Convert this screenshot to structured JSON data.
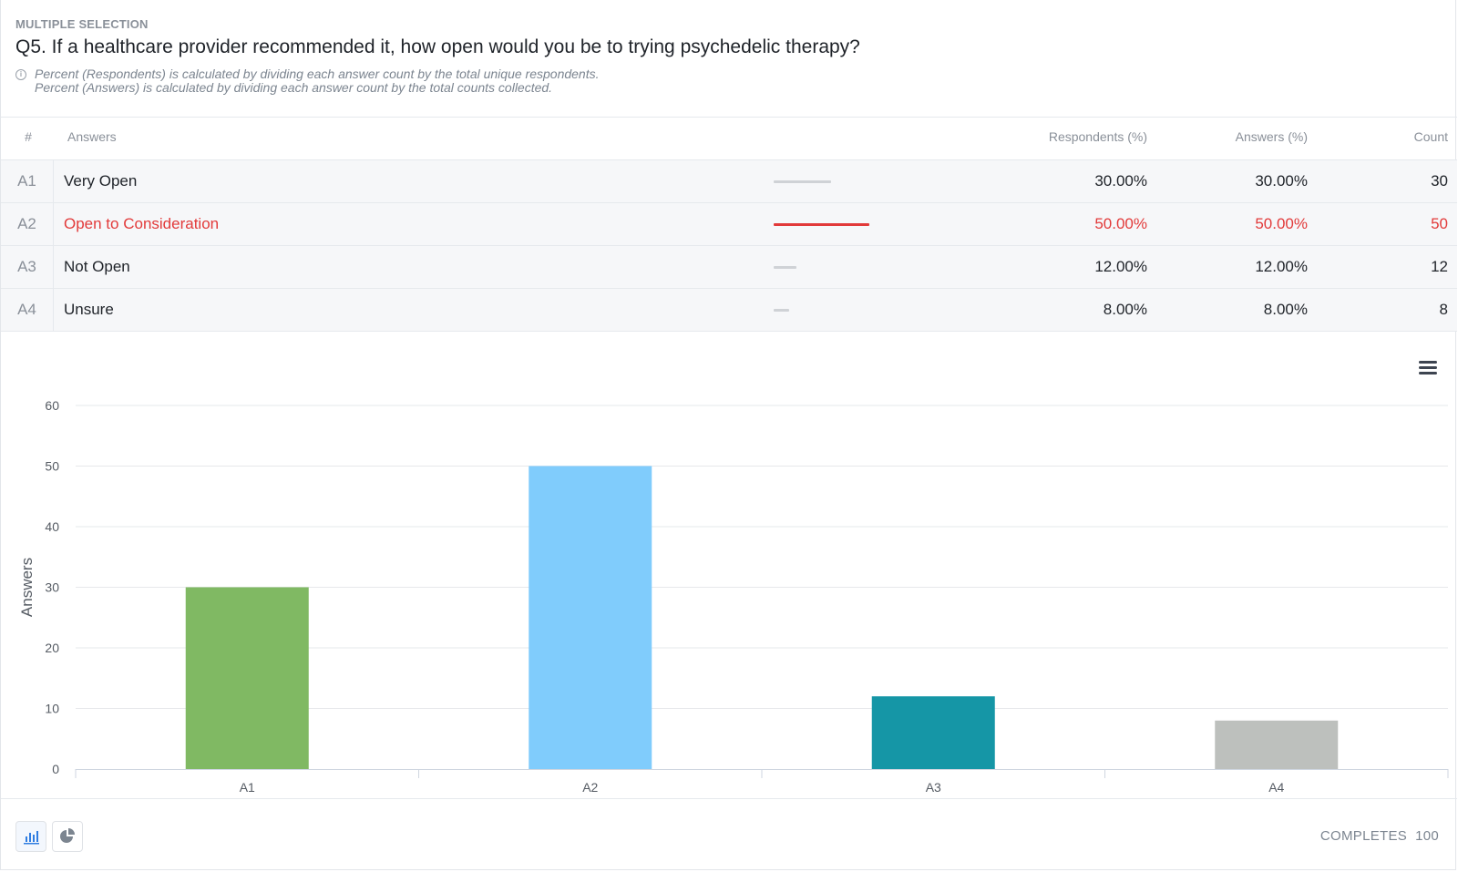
{
  "question": {
    "type": "MULTIPLE SELECTION",
    "title": "Q5. If a healthcare provider recommended it, how open would you be to trying psychedelic therapy?",
    "note_respondents": "Percent (Respondents) is calculated by dividing each answer count by the total unique respondents.",
    "note_answers": "Percent (Answers) is calculated by dividing each answer count by the total counts collected."
  },
  "table": {
    "headers": {
      "index": "#",
      "answers": "Answers",
      "respondents": "Respondents (%)",
      "answers_pct": "Answers (%)",
      "count": "Count"
    },
    "rows": [
      {
        "id": "A1",
        "label": "Very Open",
        "respondents_pct": "30.00%",
        "answers_pct": "30.00%",
        "count": "30",
        "share": 0.3,
        "highlighted": false
      },
      {
        "id": "A2",
        "label": "Open to Consideration",
        "respondents_pct": "50.00%",
        "answers_pct": "50.00%",
        "count": "50",
        "share": 0.5,
        "highlighted": true
      },
      {
        "id": "A3",
        "label": "Not Open",
        "respondents_pct": "12.00%",
        "answers_pct": "12.00%",
        "count": "12",
        "share": 0.12,
        "highlighted": false
      },
      {
        "id": "A4",
        "label": "Unsure",
        "respondents_pct": "8.00%",
        "answers_pct": "8.00%",
        "count": "8",
        "share": 0.08,
        "highlighted": false
      }
    ]
  },
  "chart_data": {
    "type": "bar",
    "categories": [
      "A1",
      "A2",
      "A3",
      "A4"
    ],
    "values": [
      30,
      50,
      12,
      8
    ],
    "colors": [
      "#80b963",
      "#80ccfc",
      "#1596a6",
      "#bdc0bd"
    ],
    "ylabel": "Answers",
    "ylim": [
      0,
      60
    ],
    "yticks": [
      0,
      10,
      20,
      30,
      40,
      50,
      60
    ],
    "grid": true
  },
  "icons": {
    "menu": "hamburger-menu-icon",
    "bar_chart": "bar-chart-icon",
    "pie_chart": "pie-chart-icon",
    "info": "info-icon"
  },
  "footer": {
    "completes_label": "COMPLETES",
    "completes_value": "100"
  }
}
